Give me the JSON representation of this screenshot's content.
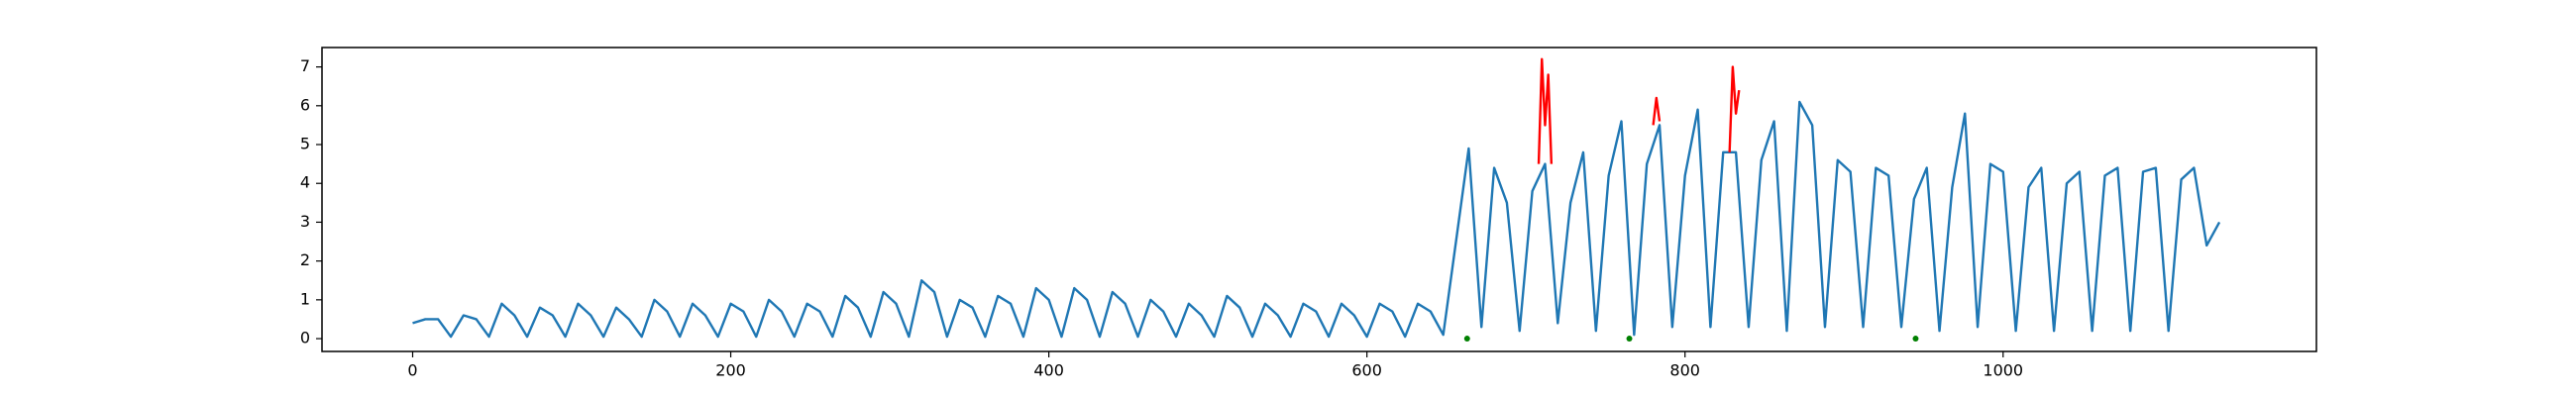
{
  "chart_data": {
    "type": "line",
    "xlim": [
      -57,
      1197
    ],
    "ylim": [
      -0.33,
      7.5
    ],
    "xticks": [
      0,
      200,
      400,
      600,
      800,
      1000
    ],
    "yticks": [
      0,
      1,
      2,
      3,
      4,
      5,
      6,
      7
    ],
    "series": [
      {
        "style": "line",
        "color": "#1f77b4",
        "x": [
          0,
          8,
          16,
          24,
          32,
          40,
          48,
          56,
          64,
          72,
          80,
          88,
          96,
          104,
          112,
          120,
          128,
          136,
          144,
          152,
          160,
          168,
          176,
          184,
          192,
          200,
          208,
          216,
          224,
          232,
          240,
          248,
          256,
          264,
          272,
          280,
          288,
          296,
          304,
          312,
          320,
          328,
          336,
          344,
          352,
          360,
          368,
          376,
          384,
          392,
          400,
          408,
          416,
          424,
          432,
          440,
          448,
          456,
          464,
          472,
          480,
          488,
          496,
          504,
          512,
          520,
          528,
          536,
          544,
          552,
          560,
          568,
          576,
          584,
          592,
          600,
          608,
          616,
          624,
          632,
          640,
          648,
          656,
          664,
          672,
          680,
          688,
          696,
          704,
          712,
          720,
          728,
          736,
          744,
          752,
          760,
          768,
          776,
          784,
          792,
          800,
          808,
          816,
          824,
          832,
          840,
          848,
          856,
          864,
          872,
          880,
          888,
          896,
          904,
          912,
          920,
          928,
          936,
          944,
          952,
          960,
          968,
          976,
          984,
          992,
          1000,
          1008,
          1016,
          1024,
          1032,
          1040,
          1048,
          1056,
          1064,
          1072,
          1080,
          1088,
          1096,
          1104,
          1112,
          1120,
          1128,
          1136
        ],
        "values": [
          0.4,
          0.5,
          0.5,
          0.05,
          0.6,
          0.5,
          0.05,
          0.9,
          0.6,
          0.05,
          0.8,
          0.6,
          0.05,
          0.9,
          0.6,
          0.05,
          0.8,
          0.5,
          0.05,
          1.0,
          0.7,
          0.05,
          0.9,
          0.6,
          0.05,
          0.9,
          0.7,
          0.05,
          1.0,
          0.7,
          0.05,
          0.9,
          0.7,
          0.05,
          1.1,
          0.8,
          0.05,
          1.2,
          0.9,
          0.05,
          1.5,
          1.2,
          0.05,
          1.0,
          0.8,
          0.05,
          1.1,
          0.9,
          0.05,
          1.3,
          1.0,
          0.05,
          1.3,
          1.0,
          0.05,
          1.2,
          0.9,
          0.05,
          1.0,
          0.7,
          0.05,
          0.9,
          0.6,
          0.05,
          1.1,
          0.8,
          0.05,
          0.9,
          0.6,
          0.05,
          0.9,
          0.7,
          0.05,
          0.9,
          0.6,
          0.05,
          0.9,
          0.7,
          0.05,
          0.9,
          0.7,
          0.1,
          2.5,
          4.9,
          0.3,
          4.4,
          3.5,
          0.2,
          3.8,
          4.5,
          0.4,
          3.5,
          4.8,
          0.2,
          4.2,
          5.6,
          0.1,
          4.5,
          5.5,
          0.3,
          4.2,
          5.9,
          0.3,
          4.8,
          4.8,
          0.3,
          4.6,
          5.6,
          0.2,
          6.1,
          5.5,
          0.3,
          4.6,
          4.3,
          0.3,
          4.4,
          4.2,
          0.3,
          3.6,
          4.4,
          0.2,
          3.9,
          5.8,
          0.3,
          4.5,
          4.3,
          0.2,
          3.9,
          4.4,
          0.2,
          4.0,
          4.3,
          0.2,
          4.2,
          4.4,
          0.2,
          4.3,
          4.4,
          0.2,
          4.1,
          4.4,
          2.4,
          3.0
        ]
      },
      {
        "style": "line",
        "color": "#ff0000",
        "x": [
          708,
          710,
          712,
          714,
          716,
          750,
          780,
          782,
          784,
          800,
          828,
          830,
          832,
          834
        ],
        "values": [
          4.5,
          7.2,
          5.5,
          6.8,
          4.5,
          null,
          5.5,
          6.2,
          5.6,
          null,
          4.8,
          7.0,
          5.8,
          6.4
        ]
      },
      {
        "style": "marker",
        "color": "#008000",
        "x": [
          663,
          765,
          945
        ],
        "values": [
          0,
          0,
          0
        ]
      }
    ]
  }
}
